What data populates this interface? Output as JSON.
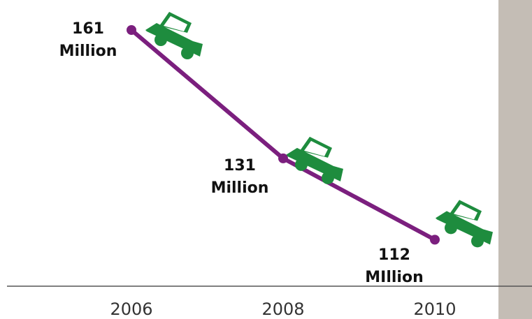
{
  "chart_data": {
    "type": "line",
    "x": [
      "2006",
      "2008",
      "2010"
    ],
    "series": [
      {
        "values": [
          161,
          131,
          112
        ]
      }
    ],
    "data_labels": [
      {
        "value": "161",
        "unit": "Million"
      },
      {
        "value": "131",
        "unit": "Million"
      },
      {
        "value": "112",
        "unit": "MIllion"
      }
    ],
    "grid": false,
    "legend": "none",
    "marker_icon": "car-icon"
  },
  "colors": {
    "line": "#7b1f7e",
    "car": "#1e8c3e",
    "car_window": "#ffffff",
    "axis": "#555555",
    "side_panel": "#c4bdb5"
  }
}
